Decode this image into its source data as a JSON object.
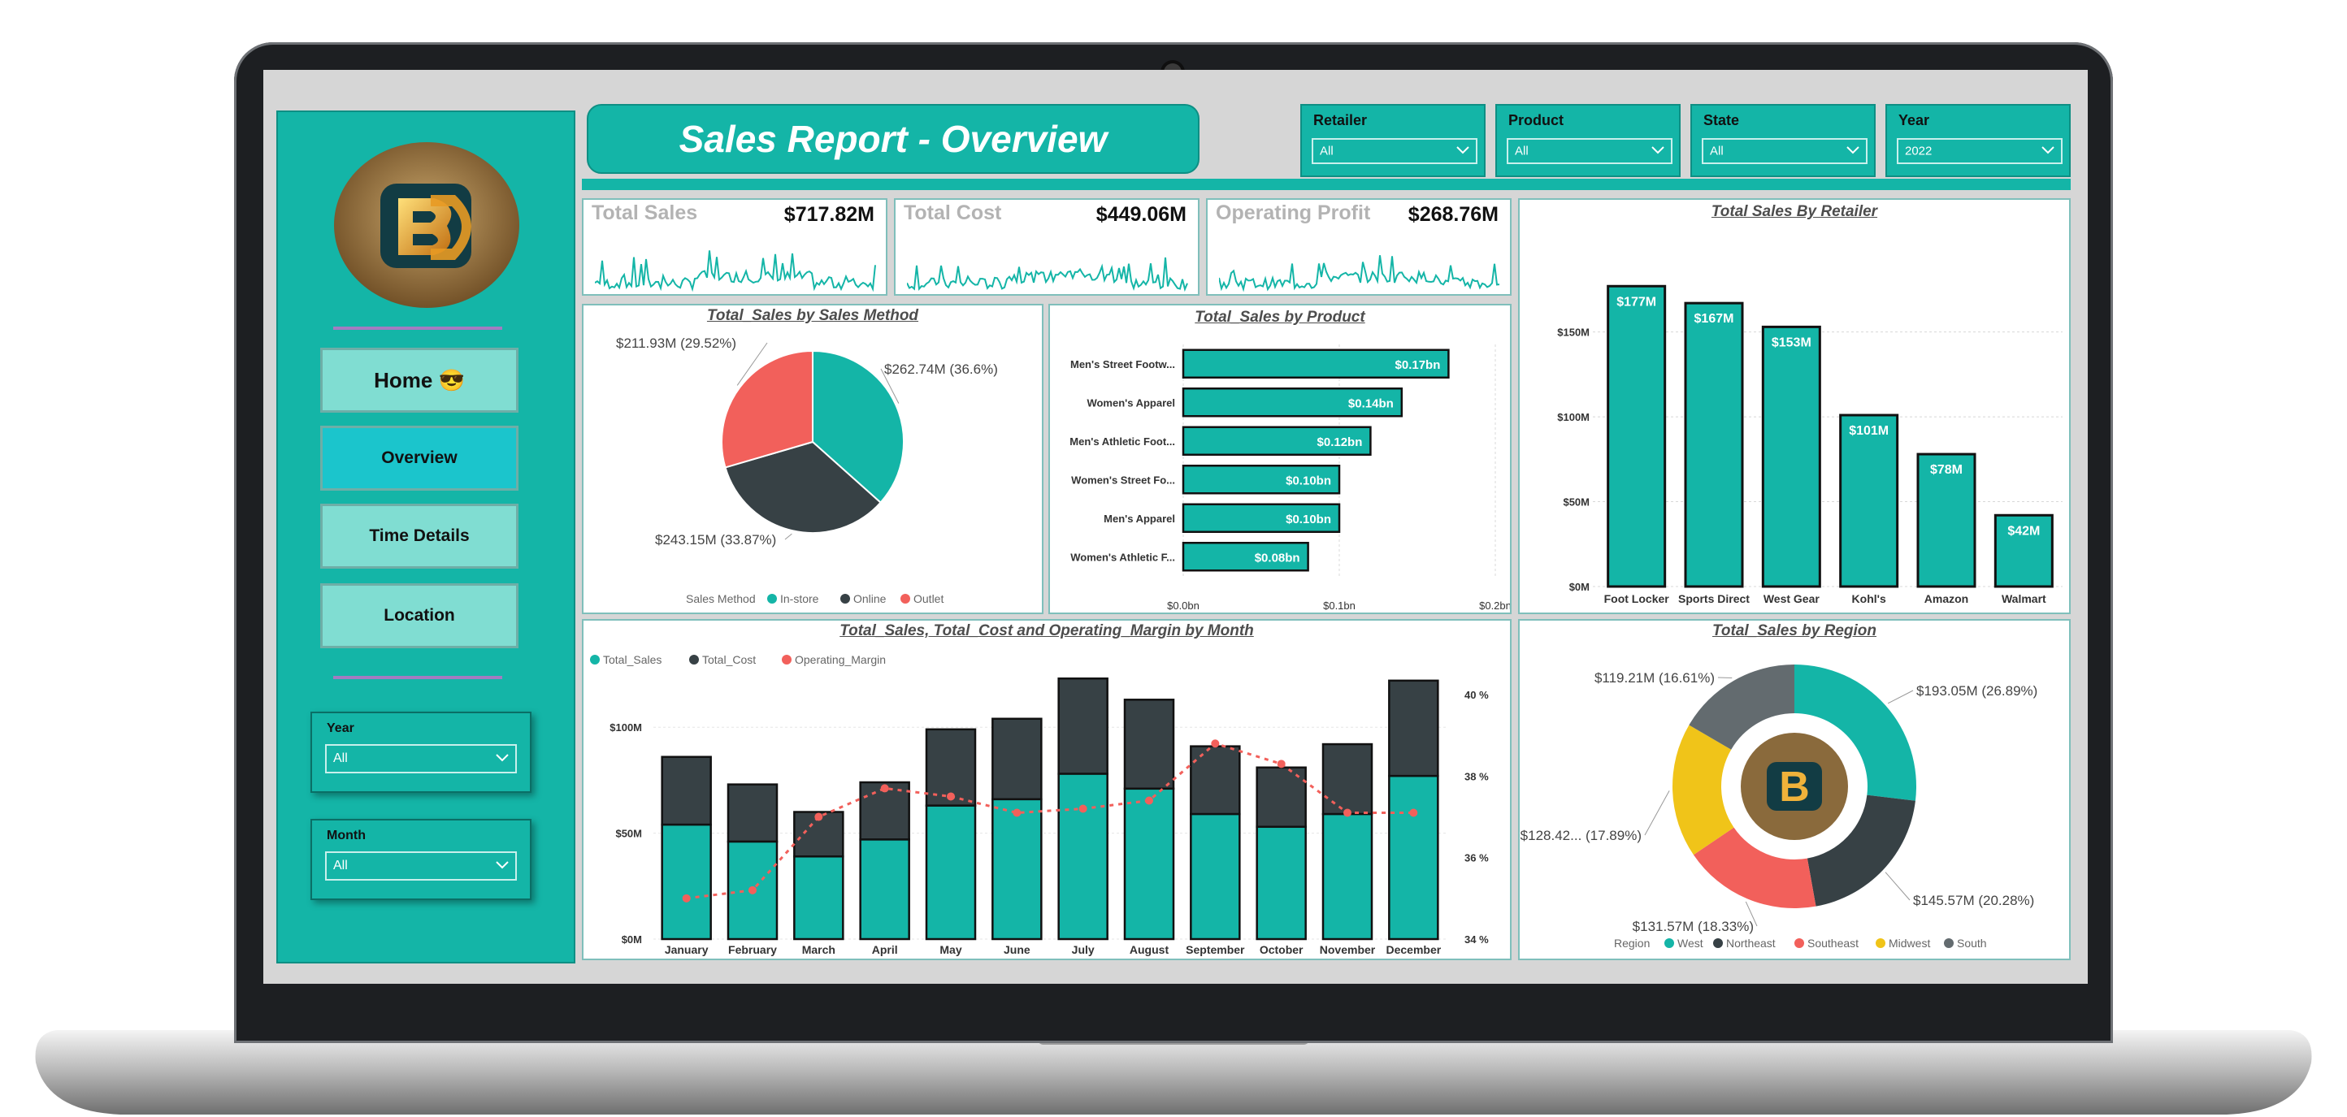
{
  "header": {
    "title": "Sales Report - Overview"
  },
  "nav": {
    "home": "Home 😎",
    "overview": "Overview",
    "time_details": "Time Details",
    "location": "Location"
  },
  "side_filters": {
    "year": {
      "label": "Year",
      "value": "All"
    },
    "month": {
      "label": "Month",
      "value": "All"
    }
  },
  "top_filters": [
    {
      "label": "Retailer",
      "value": "All"
    },
    {
      "label": "Product",
      "value": "All"
    },
    {
      "label": "State",
      "value": "All"
    },
    {
      "label": "Year",
      "value": "2022"
    }
  ],
  "kpis": [
    {
      "title": "Total Sales",
      "value": "$717.82M"
    },
    {
      "title": "Total Cost",
      "value": "$449.06M"
    },
    {
      "title": "Operating Profit",
      "value": "$268.76M"
    }
  ],
  "colors": {
    "teal": "#14b5a7",
    "dark": "#374145",
    "red": "#f2605b",
    "yellow": "#f0c419",
    "gray": "#636b6f"
  },
  "icons": {
    "chevron": "chevron-down-icon",
    "logo": "bd-logo"
  },
  "chart_data": [
    {
      "type": "pie",
      "title": "Total_Sales by Sales Method",
      "legend_title": "Sales Method",
      "legend_position": "bottom",
      "slices": [
        {
          "name": "In-store",
          "label": "$262.74M (36.6%)",
          "value": 262.74,
          "color": "#14b5a7"
        },
        {
          "name": "Online",
          "label": "$243.15M (33.87%)",
          "value": 243.15,
          "color": "#374145"
        },
        {
          "name": "Outlet",
          "label": "$211.93M (29.52%)",
          "value": 211.93,
          "color": "#f2605b"
        }
      ]
    },
    {
      "type": "bar",
      "orientation": "horizontal",
      "title": "Total_Sales by Product",
      "categories": [
        "Men's Street Footw...",
        "Women's Apparel",
        "Men's Athletic Foot...",
        "Women's Street Fo...",
        "Men's Apparel",
        "Women's Athletic F..."
      ],
      "values": [
        0.17,
        0.14,
        0.12,
        0.1,
        0.1,
        0.08
      ],
      "data_labels": [
        "$0.17bn",
        "$0.14bn",
        "$0.12bn",
        "$0.10bn",
        "$0.10bn",
        "$0.08bn"
      ],
      "xlim": [
        0,
        0.2
      ],
      "xticks": [
        "$0.0bn",
        "$0.1bn",
        "$0.2bn"
      ]
    },
    {
      "type": "bar",
      "title": "Total Sales By Retailer",
      "categories": [
        "Foot Locker",
        "Sports Direct",
        "West Gear",
        "Kohl's",
        "Amazon",
        "Walmart"
      ],
      "values": [
        177,
        167,
        153,
        101,
        78,
        42
      ],
      "data_labels": [
        "$177M",
        "$167M",
        "$153M",
        "$101M",
        "$78M",
        "$42M"
      ],
      "ylim": [
        0,
        180
      ],
      "yticks": [
        "$0M",
        "$50M",
        "$100M",
        "$150M"
      ]
    },
    {
      "type": "bar",
      "subtype": "stacked-bar-with-line",
      "title": "Total_Sales, Total_Cost and Operating_Margin by Month",
      "legend_position": "top-left",
      "categories": [
        "January",
        "February",
        "March",
        "April",
        "May",
        "June",
        "July",
        "August",
        "September",
        "October",
        "November",
        "December"
      ],
      "series": [
        {
          "name": "Total_Sales",
          "values": [
            54,
            46,
            39,
            47,
            63,
            66,
            78,
            71,
            59,
            53,
            59,
            77
          ]
        },
        {
          "name": "Total_Cost",
          "values": [
            32,
            27,
            21,
            27,
            36,
            38,
            45,
            42,
            32,
            28,
            33,
            45
          ]
        },
        {
          "name": "Operating_Margin",
          "values": [
            35.0,
            35.2,
            37.0,
            37.7,
            37.5,
            37.1,
            37.2,
            37.4,
            38.8,
            38.3,
            37.1,
            37.1
          ]
        }
      ],
      "ylim": [
        0,
        125
      ],
      "yticks": [
        "$0M",
        "$50M",
        "$100M"
      ],
      "y2lim": [
        34,
        40.5
      ],
      "y2ticks": [
        "34 %",
        "36 %",
        "38 %",
        "40 %"
      ]
    },
    {
      "type": "pie",
      "subtype": "donut",
      "title": "Total_Sales by Region",
      "legend_title": "Region",
      "legend_position": "bottom",
      "slices": [
        {
          "name": "West",
          "label": "$193.05M (26.89%)",
          "value": 193.05,
          "color": "#14b5a7"
        },
        {
          "name": "Northeast",
          "label": "$145.57M (20.28%)",
          "value": 145.57,
          "color": "#374145"
        },
        {
          "name": "Southeast",
          "label": "$131.57M (18.33%)",
          "value": 131.57,
          "color": "#f2605b"
        },
        {
          "name": "Midwest",
          "label": "$128.42... (17.89%)",
          "value": 128.42,
          "color": "#f0c419"
        },
        {
          "name": "South",
          "label": "$119.21M (16.61%)",
          "value": 119.21,
          "color": "#636b6f"
        }
      ]
    }
  ]
}
